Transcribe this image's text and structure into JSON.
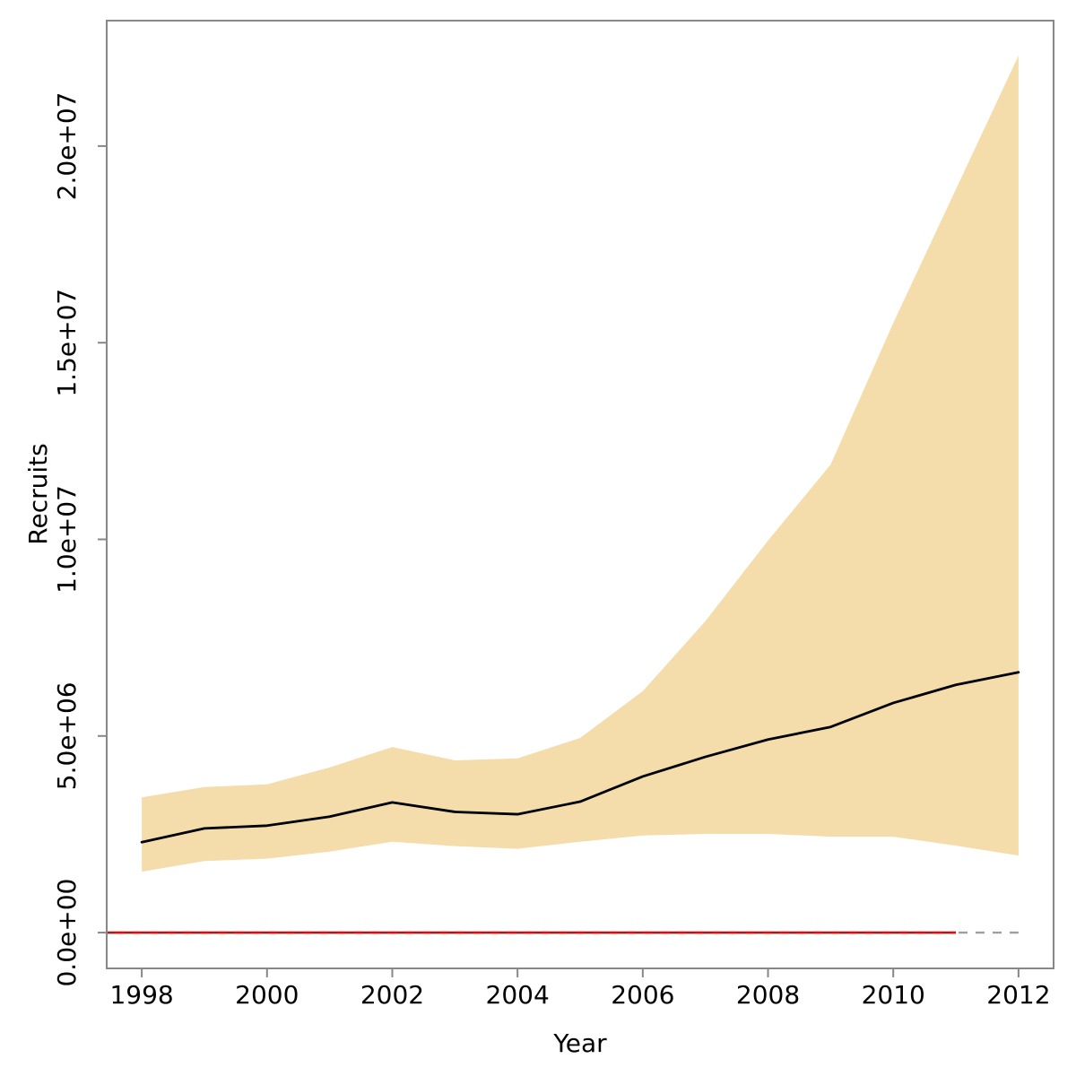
{
  "figure": {
    "background": "#ffffff",
    "axis_color": "#878787",
    "text_color": "#000000"
  },
  "chart_data": {
    "type": "area",
    "title": "",
    "xlabel": "Year",
    "ylabel": "Recruits",
    "grid": false,
    "legend": "none",
    "xlim": [
      1997.44,
      2012.56
    ],
    "ylim": [
      -910000,
      23190000
    ],
    "x": [
      1998,
      1999,
      2000,
      2001,
      2002,
      2003,
      2004,
      2005,
      2006,
      2007,
      2008,
      2009,
      2010,
      2011,
      2012
    ],
    "series": [
      {
        "name": "recruits-median",
        "type": "line",
        "color": "#000000",
        "values": [
          2300000,
          2650000,
          2720000,
          2950000,
          3310000,
          3070000,
          3010000,
          3330000,
          3970000,
          4470000,
          4910000,
          5230000,
          5840000,
          6300000,
          6620000
        ]
      },
      {
        "name": "confidence-band-upper",
        "type": "band-upper",
        "color": "#f4dcab",
        "values": [
          3440000,
          3700000,
          3770000,
          4200000,
          4720000,
          4380000,
          4430000,
          4950000,
          6140000,
          7920000,
          9970000,
          11900000,
          15500000,
          18900000,
          22300000
        ]
      },
      {
        "name": "confidence-band-lower",
        "type": "band-lower",
        "color": "#f4dcab",
        "values": [
          1550000,
          1820000,
          1880000,
          2060000,
          2310000,
          2200000,
          2130000,
          2310000,
          2470000,
          2510000,
          2510000,
          2440000,
          2440000,
          2210000,
          1960000
        ]
      }
    ],
    "zero_line": {
      "value": 0,
      "solid_color": "#ff0000",
      "solid_x_range": [
        1997.44,
        2011
      ],
      "dashed_color": "#3f3f3f",
      "dashed_opacity": 0.5,
      "dashed_x_range": [
        1997.44,
        2012
      ]
    },
    "x_ticks": {
      "values": [
        1998,
        2000,
        2002,
        2004,
        2006,
        2008,
        2010,
        2012
      ],
      "labels": [
        "1998",
        "2000",
        "2002",
        "2004",
        "2006",
        "2008",
        "2010",
        "2012"
      ]
    },
    "y_ticks": {
      "values": [
        0,
        5000000,
        10000000,
        15000000,
        20000000
      ],
      "labels": [
        "0.0e+00",
        "5.0e+06",
        "1.0e+07",
        "1.5e+07",
        "2.0e+07"
      ]
    }
  }
}
